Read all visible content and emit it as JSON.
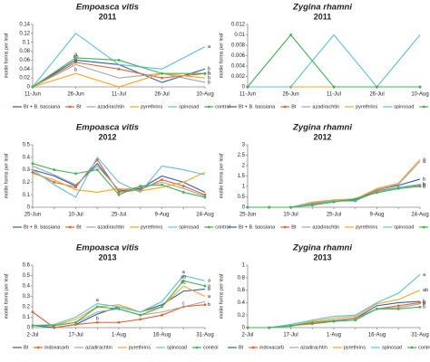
{
  "chart_data": [
    {
      "type": "line",
      "title": "Empoasca vitis",
      "subtitle": "2011",
      "ylabel": "motile forms per leaf",
      "categories": [
        "11-Jun",
        "26-Jun",
        "11-Jul",
        "26-Jul",
        "10-Aug"
      ],
      "ylim": [
        0,
        0.14
      ],
      "yticks": [
        0,
        0.02,
        0.04,
        0.06,
        0.08,
        0.1,
        0.12,
        0.14
      ],
      "series": [
        {
          "name": "Bt + B. bassiana",
          "color": "#2e5fa8",
          "marker": false,
          "values": [
            0,
            0.06,
            0.05,
            0.01,
            0.04
          ],
          "letters": [
            null,
            "ab",
            null,
            null,
            "b"
          ]
        },
        {
          "name": "Bt",
          "color": "#e8602c",
          "marker": true,
          "values": [
            0,
            0.055,
            0.04,
            0.02,
            0.03
          ],
          "letters": [
            null,
            "b",
            null,
            null,
            "b"
          ]
        },
        {
          "name": "azadirachtin",
          "color": "#a5a5a5",
          "marker": false,
          "values": [
            0,
            0.05,
            0.02,
            0.03,
            0.01
          ],
          "letters": [
            null,
            "b",
            null,
            null,
            "b"
          ]
        },
        {
          "name": "pyrethrins",
          "color": "#f5a623",
          "marker": false,
          "values": [
            0,
            0.03,
            0,
            0.03,
            0.02
          ],
          "letters": [
            null,
            "b",
            null,
            null,
            "b"
          ]
        },
        {
          "name": "spinosad",
          "color": "#5bc0de",
          "marker": false,
          "values": [
            0,
            0.12,
            0.05,
            0.04,
            0.09
          ],
          "letters": [
            null,
            null,
            null,
            null,
            "a"
          ]
        },
        {
          "name": "control",
          "color": "#3cb54a",
          "marker": true,
          "values": [
            0,
            0.065,
            0.06,
            0.03,
            0.03
          ],
          "letters": [
            null,
            "a",
            null,
            null,
            "b"
          ]
        }
      ]
    },
    {
      "type": "line",
      "title": "Zygina rhamni",
      "subtitle": "2011",
      "ylabel": "motile forms per leaf",
      "categories": [
        "11-Jun",
        "26-Jun",
        "11-Jul",
        "26-Jul",
        "10-Aug"
      ],
      "ylim": [
        0,
        0.012
      ],
      "yticks": [
        0,
        0.002,
        0.004,
        0.006,
        0.008,
        0.01,
        0.012
      ],
      "series": [
        {
          "name": "Bt + B. bassiana",
          "color": "#2e5fa8",
          "marker": false,
          "values": [
            0,
            0,
            0,
            0,
            0
          ],
          "letters": [
            null,
            null,
            null,
            null,
            null
          ]
        },
        {
          "name": "Bt",
          "color": "#e8602c",
          "marker": true,
          "values": [
            0,
            0,
            0,
            0,
            0
          ],
          "letters": [
            null,
            null,
            null,
            null,
            null
          ]
        },
        {
          "name": "azadirachtin",
          "color": "#a5a5a5",
          "marker": false,
          "values": [
            0,
            0,
            0,
            0,
            0
          ],
          "letters": [
            null,
            null,
            null,
            null,
            null
          ]
        },
        {
          "name": "pyrethrins",
          "color": "#f5a623",
          "marker": false,
          "values": [
            0,
            0,
            0,
            0,
            0
          ],
          "letters": [
            null,
            null,
            null,
            null,
            null
          ]
        },
        {
          "name": "spinosad",
          "color": "#5bc0de",
          "marker": false,
          "values": [
            0,
            0,
            0.01,
            0,
            0.01
          ],
          "letters": [
            null,
            null,
            null,
            null,
            null
          ]
        },
        {
          "name": "control",
          "color": "#3cb54a",
          "marker": true,
          "values": [
            0,
            0.01,
            0,
            0,
            0
          ],
          "letters": [
            null,
            null,
            null,
            null,
            null
          ]
        }
      ]
    },
    {
      "type": "line",
      "title": "Empoasca vitis",
      "subtitle": "2012",
      "ylabel": "motile forms per leaf",
      "categories": [
        "25-Jun",
        null,
        "10-Jul",
        null,
        "25-Jul",
        null,
        "9-Aug",
        null,
        "24-Aug"
      ],
      "ylim": [
        0,
        0.5
      ],
      "yticks": [
        0,
        0.1,
        0.2,
        0.3,
        0.4,
        0.5
      ],
      "series": [
        {
          "name": "Bt + B. bassiana",
          "color": "#2e5fa8",
          "marker": false,
          "values": [
            0.3,
            0.25,
            0.17,
            0.35,
            0.13,
            0.15,
            0.25,
            0.2,
            0.12
          ],
          "letters": [
            null,
            null,
            null,
            null,
            null,
            null,
            null,
            null,
            null
          ]
        },
        {
          "name": "Bt",
          "color": "#e8602c",
          "marker": true,
          "values": [
            0.28,
            0.2,
            0.16,
            0.38,
            0.12,
            0.14,
            0.22,
            0.17,
            0.1
          ],
          "letters": [
            null,
            null,
            null,
            null,
            null,
            null,
            null,
            null,
            null
          ]
        },
        {
          "name": "azadirachtin",
          "color": "#a5a5a5",
          "marker": false,
          "values": [
            0.33,
            0.26,
            0.18,
            0.33,
            0.14,
            0.16,
            0.2,
            0.15,
            0.09
          ],
          "letters": [
            null,
            null,
            null,
            null,
            null,
            null,
            null,
            null,
            null
          ]
        },
        {
          "name": "pyrethrins",
          "color": "#f5a623",
          "marker": false,
          "values": [
            0.27,
            0.22,
            0.14,
            0.12,
            0.15,
            0.13,
            0.16,
            0.2,
            0.28
          ],
          "letters": [
            null,
            null,
            null,
            null,
            null,
            null,
            null,
            null,
            null
          ]
        },
        {
          "name": "spinosad",
          "color": "#5bc0de",
          "marker": false,
          "values": [
            0.3,
            0.18,
            0.08,
            0.4,
            0.2,
            0.12,
            0.33,
            0.3,
            0.26
          ],
          "letters": [
            null,
            null,
            null,
            null,
            null,
            null,
            null,
            null,
            null
          ]
        },
        {
          "name": "control",
          "color": "#3cb54a",
          "marker": true,
          "values": [
            0.35,
            0.3,
            0.27,
            0.3,
            0.1,
            0.17,
            0.18,
            0.12,
            0.08
          ],
          "letters": [
            null,
            null,
            null,
            null,
            null,
            null,
            null,
            null,
            null
          ]
        }
      ]
    },
    {
      "type": "line",
      "title": "Zygina rhamni",
      "subtitle": "2012",
      "ylabel": "motile forms per leaf",
      "categories": [
        "25-Jun",
        null,
        "10-Jul",
        null,
        "25-Jul",
        null,
        "9-Aug",
        null,
        "24-Aug"
      ],
      "ylim": [
        0,
        3
      ],
      "yticks": [
        0,
        0.5,
        1,
        1.5,
        2,
        2.5,
        3
      ],
      "series": [
        {
          "name": "Bt + B. bassiana",
          "color": "#2e5fa8",
          "marker": false,
          "values": [
            0,
            0,
            0,
            0.2,
            0.3,
            0.35,
            0.85,
            1.05,
            1.35
          ],
          "letters": [
            null,
            null,
            null,
            null,
            null,
            null,
            null,
            null,
            "b"
          ]
        },
        {
          "name": "Bt",
          "color": "#e8602c",
          "marker": true,
          "values": [
            0,
            0,
            0,
            0.15,
            0.3,
            0.3,
            0.8,
            0.95,
            1.05
          ],
          "letters": [
            null,
            null,
            null,
            null,
            null,
            null,
            null,
            null,
            "b"
          ]
        },
        {
          "name": "azadirachtin",
          "color": "#a5a5a5",
          "marker": false,
          "values": [
            0,
            0,
            0,
            0.2,
            0.35,
            0.4,
            0.85,
            1.1,
            2.2
          ],
          "letters": [
            null,
            null,
            null,
            null,
            null,
            null,
            null,
            null,
            "a"
          ]
        },
        {
          "name": "pyrethrins",
          "color": "#f5a623",
          "marker": false,
          "values": [
            0,
            0,
            0,
            0.25,
            0.35,
            0.4,
            0.9,
            1.15,
            2.3
          ],
          "letters": [
            null,
            null,
            null,
            null,
            null,
            null,
            null,
            null,
            "a"
          ]
        },
        {
          "name": "spinosad",
          "color": "#5bc0de",
          "marker": false,
          "values": [
            0,
            0,
            0,
            0.2,
            0.3,
            0.3,
            0.75,
            0.95,
            1.1
          ],
          "letters": [
            null,
            null,
            null,
            null,
            null,
            null,
            null,
            null,
            "b"
          ]
        },
        {
          "name": "control",
          "color": "#3cb54a",
          "marker": true,
          "values": [
            0,
            0,
            0,
            0.1,
            0.25,
            0.4,
            0.7,
            0.9,
            1.0
          ],
          "letters": [
            null,
            null,
            null,
            null,
            null,
            null,
            null,
            null,
            "b"
          ]
        }
      ]
    },
    {
      "type": "line",
      "title": "Empoasca vitis",
      "subtitle": "2013",
      "ylabel": "motile forms per leaf",
      "categories": [
        "2-Jul",
        null,
        "17-Jul",
        null,
        "1-Aug",
        null,
        "16-Aug",
        null,
        "31-Aug"
      ],
      "ylim": [
        0,
        0.6
      ],
      "yticks": [
        0,
        0.1,
        0.2,
        0.3,
        0.4,
        0.5,
        0.6
      ],
      "series": [
        {
          "name": "Bt",
          "color": "#2e5fa8",
          "marker": false,
          "values": [
            0.02,
            0,
            0.03,
            0.13,
            0.2,
            0.15,
            0.22,
            0.35,
            0.37
          ],
          "letters": [
            null,
            null,
            null,
            null,
            null,
            null,
            null,
            null,
            "b"
          ]
        },
        {
          "name": "indoxacarb",
          "color": "#e8602c",
          "marker": true,
          "values": [
            0.15,
            0,
            0.03,
            0.05,
            0.05,
            0.08,
            0.12,
            0.2,
            0.22
          ],
          "letters": [
            null,
            null,
            null,
            "b",
            null,
            null,
            null,
            "c",
            "b"
          ]
        },
        {
          "name": "azadirachtin",
          "color": "#a5a5a5",
          "marker": false,
          "values": [
            0.02,
            0.02,
            0.05,
            0.15,
            0.18,
            0.12,
            0.15,
            0.2,
            0.25
          ],
          "letters": [
            null,
            null,
            null,
            null,
            null,
            null,
            null,
            null,
            null
          ]
        },
        {
          "name": "pyrethrins",
          "color": "#f5a623",
          "marker": false,
          "values": [
            0.02,
            0.02,
            0.08,
            0.2,
            0.22,
            0.15,
            0.2,
            0.4,
            0.3
          ],
          "letters": [
            null,
            null,
            null,
            null,
            null,
            null,
            null,
            "bc",
            "a"
          ]
        },
        {
          "name": "spinosad",
          "color": "#5bc0de",
          "marker": false,
          "values": [
            0.02,
            0.03,
            0.1,
            0.23,
            0.2,
            0.15,
            0.25,
            0.5,
            0.45
          ],
          "letters": [
            null,
            null,
            null,
            "a",
            null,
            null,
            null,
            "a",
            "a"
          ]
        },
        {
          "name": "control",
          "color": "#3cb54a",
          "marker": true,
          "values": [
            0.02,
            0.02,
            0.05,
            0.2,
            0.18,
            0.12,
            0.2,
            0.45,
            0.4
          ],
          "letters": [
            null,
            null,
            null,
            null,
            null,
            null,
            null,
            "ab",
            "a"
          ]
        }
      ]
    },
    {
      "type": "line",
      "title": "Zygina rhamni",
      "subtitle": "2013",
      "ylabel": "motile forms per leaf",
      "categories": [
        "2-Jul",
        null,
        "17-Jul",
        null,
        "1-Aug",
        null,
        "16-Aug",
        null,
        "31-Aug"
      ],
      "ylim": [
        0,
        1
      ],
      "yticks": [
        0,
        0.2,
        0.4,
        0.6,
        0.8,
        1
      ],
      "series": [
        {
          "name": "Bt",
          "color": "#2e5fa8",
          "marker": false,
          "values": [
            0,
            0,
            0.03,
            0.08,
            0.12,
            0.15,
            0.35,
            0.4,
            0.42
          ],
          "letters": [
            null,
            null,
            null,
            null,
            null,
            null,
            null,
            null,
            "b"
          ]
        },
        {
          "name": "indoxacarb",
          "color": "#e8602c",
          "marker": true,
          "values": [
            0,
            0,
            0.03,
            0.06,
            0.1,
            0.15,
            0.3,
            0.35,
            0.4
          ],
          "letters": [
            null,
            null,
            null,
            null,
            null,
            null,
            null,
            null,
            "b"
          ]
        },
        {
          "name": "azadirachtin",
          "color": "#a5a5a5",
          "marker": false,
          "values": [
            0,
            0,
            0.02,
            0.08,
            0.12,
            0.14,
            0.3,
            0.32,
            0.38
          ],
          "letters": [
            null,
            null,
            null,
            null,
            null,
            null,
            null,
            null,
            "b"
          ]
        },
        {
          "name": "pyrethrins",
          "color": "#f5a623",
          "marker": false,
          "values": [
            0,
            0,
            0.03,
            0.1,
            0.15,
            0.18,
            0.38,
            0.45,
            0.6
          ],
          "letters": [
            null,
            null,
            null,
            null,
            null,
            null,
            null,
            null,
            "ab"
          ]
        },
        {
          "name": "spinosad",
          "color": "#5bc0de",
          "marker": false,
          "values": [
            0,
            0,
            0.05,
            0.12,
            0.18,
            0.2,
            0.4,
            0.55,
            0.85
          ],
          "letters": [
            null,
            null,
            null,
            null,
            null,
            null,
            null,
            null,
            "a"
          ]
        },
        {
          "name": "control",
          "color": "#3cb54a",
          "marker": true,
          "values": [
            0,
            0,
            0.03,
            0.08,
            0.1,
            0.12,
            0.3,
            0.3,
            0.33
          ],
          "letters": [
            null,
            null,
            null,
            null,
            null,
            null,
            null,
            null,
            "b"
          ]
        }
      ]
    }
  ]
}
